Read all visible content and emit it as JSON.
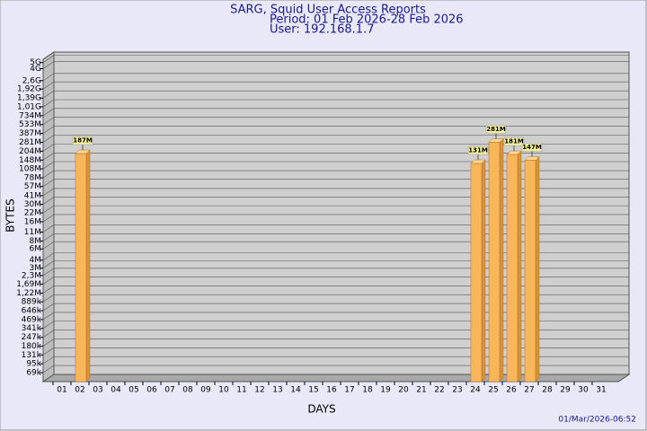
{
  "chart_data": {
    "type": "bar",
    "title": "SARG, Squid User Access Reports",
    "subtitle": "Period: 01 Feb 2026-28 Feb 2026",
    "user": "User: 192.168.1.7",
    "x_label": "DAYS",
    "y_label": "BYTES",
    "footer": "01/Mar/2026-06:52",
    "color": "#f7b65a",
    "log_scale": true,
    "grid": true,
    "ylim": [
      50000,
      6000000000
    ],
    "yticks": [
      {
        "value": 69000,
        "label": "69k"
      },
      {
        "value": 95000,
        "label": "95k"
      },
      {
        "value": 131000,
        "label": "131k"
      },
      {
        "value": 180000,
        "label": "180k"
      },
      {
        "value": 247000,
        "label": "247k"
      },
      {
        "value": 341000,
        "label": "341k"
      },
      {
        "value": 469000,
        "label": "469k"
      },
      {
        "value": 646000,
        "label": "646k"
      },
      {
        "value": 889000,
        "label": "889k"
      },
      {
        "value": 1220000,
        "label": "1,22M"
      },
      {
        "value": 1690000,
        "label": "1,69M"
      },
      {
        "value": 2300000,
        "label": "2,3M"
      },
      {
        "value": 3000000,
        "label": "3M"
      },
      {
        "value": 4000000,
        "label": "4M"
      },
      {
        "value": 6000000,
        "label": "6M"
      },
      {
        "value": 8000000,
        "label": "8M"
      },
      {
        "value": 11000000,
        "label": "11M"
      },
      {
        "value": 16000000,
        "label": "16M"
      },
      {
        "value": 22000000,
        "label": "22M"
      },
      {
        "value": 30000000,
        "label": "30M"
      },
      {
        "value": 41000000,
        "label": "41M"
      },
      {
        "value": 57000000,
        "label": "57M"
      },
      {
        "value": 78000000,
        "label": "78M"
      },
      {
        "value": 108000000,
        "label": "108M"
      },
      {
        "value": 148000000,
        "label": "148M"
      },
      {
        "value": 204000000,
        "label": "204M"
      },
      {
        "value": 281000000,
        "label": "281M"
      },
      {
        "value": 387000000,
        "label": "387M"
      },
      {
        "value": 533000000,
        "label": "533M"
      },
      {
        "value": 734000000,
        "label": "734M"
      },
      {
        "value": 1010000000,
        "label": "1,01G"
      },
      {
        "value": 1390000000,
        "label": "1,39G"
      },
      {
        "value": 1920000000,
        "label": "1,92G"
      },
      {
        "value": 2600000000,
        "label": "2,6G"
      },
      {
        "value": 4000000000,
        "label": "4G"
      },
      {
        "value": 5000000000,
        "label": "5G"
      }
    ],
    "categories": [
      "01",
      "02",
      "03",
      "04",
      "05",
      "06",
      "07",
      "08",
      "09",
      "10",
      "11",
      "12",
      "13",
      "14",
      "15",
      "16",
      "17",
      "18",
      "19",
      "20",
      "21",
      "22",
      "23",
      "24",
      "25",
      "26",
      "27",
      "28",
      "29",
      "30",
      "31"
    ],
    "values": [
      null,
      187000000,
      null,
      null,
      null,
      null,
      null,
      null,
      null,
      null,
      null,
      null,
      null,
      null,
      null,
      null,
      null,
      null,
      null,
      null,
      null,
      null,
      null,
      131000000,
      281000000,
      181000000,
      147000000,
      null,
      null,
      null,
      null
    ],
    "value_labels": [
      null,
      "187M",
      null,
      null,
      null,
      null,
      null,
      null,
      null,
      null,
      null,
      null,
      null,
      null,
      null,
      null,
      null,
      null,
      null,
      null,
      null,
      null,
      null,
      "131M",
      "281M",
      "181M",
      "147M",
      null,
      null,
      null,
      null
    ]
  }
}
